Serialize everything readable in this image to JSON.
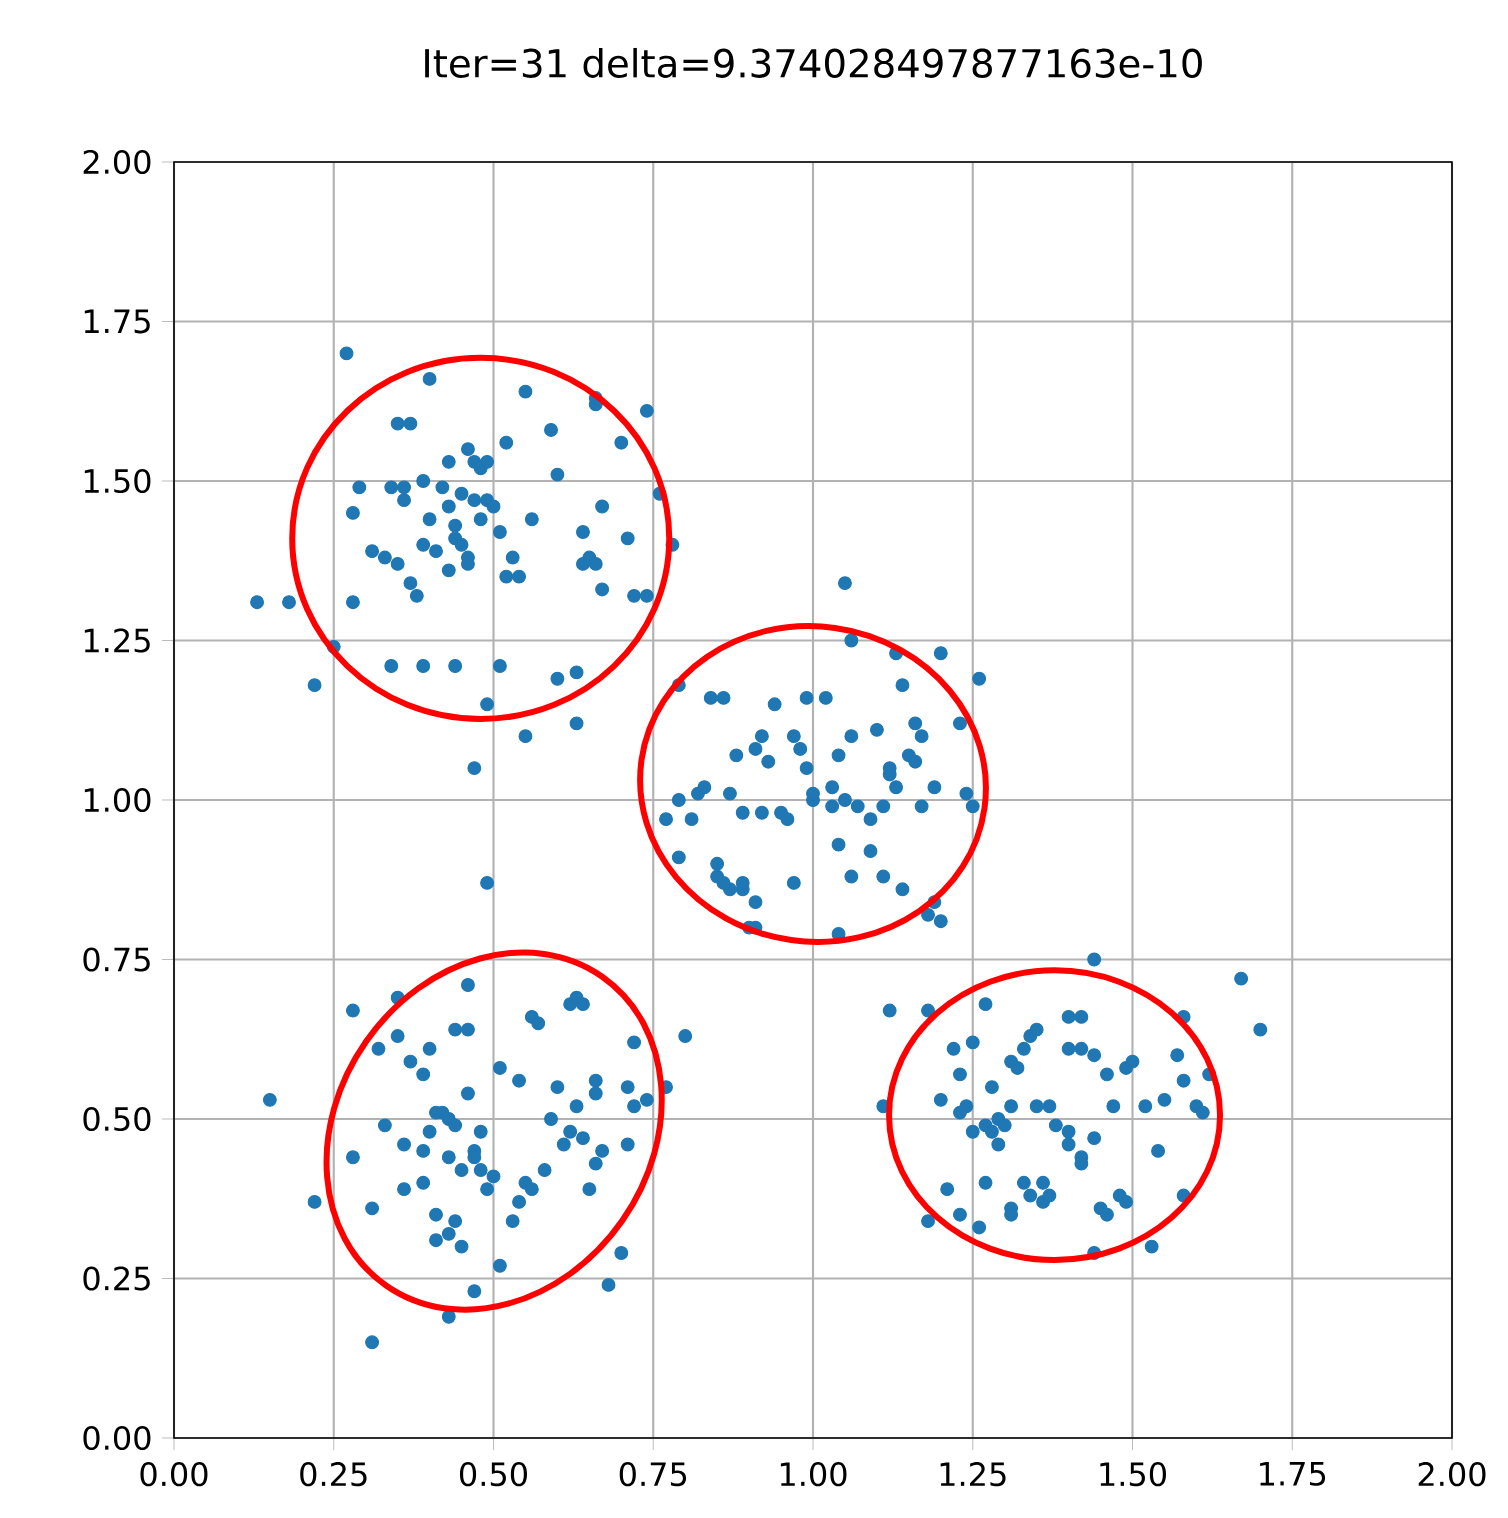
{
  "chart_data": {
    "type": "scatter",
    "title": "Iter=31  delta=9.374028497877163e-10",
    "xlim": [
      0,
      2
    ],
    "ylim": [
      0,
      2
    ],
    "xticks": [
      {
        "value": 0,
        "label": "0.00"
      },
      {
        "value": 0.25,
        "label": "0.25"
      },
      {
        "value": 0.5,
        "label": "0.50"
      },
      {
        "value": 0.75,
        "label": "0.75"
      },
      {
        "value": 1,
        "label": "1.00"
      },
      {
        "value": 1.25,
        "label": "1.25"
      },
      {
        "value": 1.5,
        "label": "1.50"
      },
      {
        "value": 1.75,
        "label": "1.75"
      },
      {
        "value": 2,
        "label": "2.00"
      }
    ],
    "yticks": [
      {
        "value": 0,
        "label": "0.00"
      },
      {
        "value": 0.25,
        "label": "0.25"
      },
      {
        "value": 0.5,
        "label": "0.50"
      },
      {
        "value": 0.75,
        "label": "0.75"
      },
      {
        "value": 1,
        "label": "1.00"
      },
      {
        "value": 1.25,
        "label": "1.25"
      },
      {
        "value": 1.5,
        "label": "1.50"
      },
      {
        "value": 1.75,
        "label": "1.75"
      },
      {
        "value": 2,
        "label": "2.00"
      }
    ],
    "grid": true,
    "marker": "circle",
    "series": [
      {
        "color": "#1f77b4",
        "x": [
          0.27,
          0.4,
          0.35,
          0.37,
          0.55,
          0.66,
          0.66,
          0.59,
          0.7,
          0.74,
          0.46,
          0.52,
          0.43,
          0.47,
          0.48,
          0.49,
          0.6,
          0.29,
          0.34,
          0.36,
          0.39,
          0.42,
          0.45,
          0.47,
          0.49,
          0.5,
          0.43,
          0.36,
          0.28,
          0.4,
          0.44,
          0.48,
          0.56,
          0.67,
          0.76,
          0.78,
          0.31,
          0.39,
          0.41,
          0.43,
          0.44,
          0.45,
          0.46,
          0.46,
          0.51,
          0.64,
          0.65,
          0.64,
          0.66,
          0.71,
          0.33,
          0.35,
          0.37,
          0.38,
          0.53,
          0.52,
          0.54,
          0.72,
          0.67,
          0.28,
          0.13,
          0.18,
          0.39,
          0.34,
          0.44,
          0.51,
          0.6,
          0.63,
          0.49,
          0.22,
          0.25,
          0.55,
          0.63,
          0.47,
          0.79,
          1.05,
          1.06,
          1.13,
          1.2,
          1.26,
          0.84,
          0.86,
          0.94,
          0.99,
          1.02,
          1.14,
          1.16,
          1.1,
          1.17,
          1.23,
          0.88,
          0.91,
          0.92,
          0.93,
          0.97,
          0.98,
          0.99,
          1.04,
          1.06,
          1.12,
          1.12,
          1.15,
          1.16,
          0.82,
          0.83,
          0.87,
          0.89,
          0.92,
          0.95,
          0.96,
          1.0,
          1.03,
          1.05,
          1.07,
          1.11,
          1.13,
          1.19,
          1.24,
          1.25,
          1.0,
          1.03,
          0.81,
          1.04,
          1.09,
          1.17,
          0.85,
          0.85,
          0.87,
          0.89,
          0.89,
          0.86,
          0.91,
          0.97,
          1.06,
          1.09,
          1.11,
          1.14,
          1.18,
          1.19,
          1.2,
          0.91,
          0.9,
          1.04,
          0.77,
          0.79,
          0.79,
          0.74,
          0.49,
          0.46,
          0.35,
          0.28,
          0.32,
          0.4,
          0.37,
          0.46,
          0.44,
          0.39,
          0.35,
          0.56,
          0.57,
          0.62,
          0.63,
          0.64,
          0.72,
          0.77,
          0.8,
          0.51,
          0.54,
          0.66,
          0.66,
          0.71,
          0.72,
          0.74,
          0.59,
          0.62,
          0.6,
          0.63,
          0.46,
          0.42,
          0.4,
          0.43,
          0.41,
          0.44,
          0.48,
          0.47,
          0.47,
          0.45,
          0.43,
          0.36,
          0.39,
          0.33,
          0.36,
          0.39,
          0.48,
          0.5,
          0.49,
          0.55,
          0.56,
          0.61,
          0.64,
          0.67,
          0.71,
          0.66,
          0.58,
          0.28,
          0.15,
          0.22,
          0.31,
          0.41,
          0.43,
          0.45,
          0.41,
          0.44,
          0.53,
          0.54,
          0.51,
          0.47,
          0.43,
          0.31,
          0.68,
          0.7,
          0.65,
          1.44,
          1.67,
          1.7,
          1.58,
          1.27,
          1.25,
          1.33,
          1.34,
          1.35,
          1.4,
          1.42,
          1.44,
          1.4,
          1.42,
          1.22,
          1.2,
          1.23,
          1.28,
          1.31,
          1.32,
          1.29,
          1.3,
          1.31,
          1.35,
          1.37,
          1.24,
          1.23,
          1.25,
          1.27,
          1.28,
          1.29,
          1.38,
          1.4,
          1.4,
          1.42,
          1.42,
          1.44,
          1.46,
          1.49,
          1.5,
          1.47,
          1.52,
          1.57,
          1.58,
          1.6,
          1.55,
          1.61,
          1.54,
          1.27,
          1.33,
          1.31,
          1.31,
          1.34,
          1.26,
          1.23,
          1.18,
          1.21,
          1.36,
          1.37,
          1.36,
          1.45,
          1.48,
          1.46,
          1.49,
          1.44,
          1.53,
          1.58,
          1.18,
          1.11,
          1.12,
          1.62
        ],
        "values": [
          1.7,
          1.66,
          1.59,
          1.59,
          1.64,
          1.62,
          1.63,
          1.58,
          1.56,
          1.61,
          1.55,
          1.56,
          1.53,
          1.53,
          1.52,
          1.53,
          1.51,
          1.49,
          1.49,
          1.47,
          1.5,
          1.49,
          1.48,
          1.47,
          1.47,
          1.46,
          1.46,
          1.49,
          1.45,
          1.44,
          1.43,
          1.44,
          1.44,
          1.46,
          1.48,
          1.4,
          1.39,
          1.4,
          1.39,
          1.36,
          1.41,
          1.4,
          1.38,
          1.37,
          1.42,
          1.42,
          1.38,
          1.37,
          1.37,
          1.41,
          1.38,
          1.37,
          1.34,
          1.32,
          1.38,
          1.35,
          1.35,
          1.32,
          1.33,
          1.31,
          1.31,
          1.31,
          1.21,
          1.21,
          1.21,
          1.21,
          1.19,
          1.2,
          1.15,
          1.18,
          1.24,
          1.1,
          1.12,
          1.05,
          1.18,
          1.34,
          1.25,
          1.23,
          1.23,
          1.19,
          1.16,
          1.16,
          1.15,
          1.16,
          1.16,
          1.18,
          1.12,
          1.11,
          1.1,
          1.12,
          1.07,
          1.08,
          1.1,
          1.06,
          1.1,
          1.08,
          1.05,
          1.07,
          1.1,
          1.04,
          1.05,
          1.07,
          1.06,
          1.01,
          1.02,
          1.01,
          0.98,
          0.98,
          0.98,
          0.97,
          1.0,
          0.99,
          1.0,
          0.99,
          0.99,
          1.02,
          1.02,
          1.01,
          0.99,
          1.01,
          1.02,
          0.97,
          0.93,
          0.97,
          0.99,
          0.9,
          0.88,
          0.86,
          0.86,
          0.87,
          0.87,
          0.84,
          0.87,
          0.88,
          0.92,
          0.88,
          0.86,
          0.82,
          0.84,
          0.81,
          0.8,
          0.8,
          0.79,
          0.97,
          0.91,
          1.0,
          1.32,
          0.87,
          0.71,
          0.69,
          0.67,
          0.61,
          0.61,
          0.59,
          0.64,
          0.64,
          0.57,
          0.63,
          0.66,
          0.65,
          0.68,
          0.69,
          0.68,
          0.62,
          0.55,
          0.63,
          0.58,
          0.56,
          0.54,
          0.56,
          0.55,
          0.52,
          0.53,
          0.5,
          0.48,
          0.55,
          0.52,
          0.54,
          0.51,
          0.48,
          0.5,
          0.51,
          0.49,
          0.48,
          0.45,
          0.44,
          0.42,
          0.44,
          0.46,
          0.45,
          0.49,
          0.39,
          0.4,
          0.42,
          0.41,
          0.39,
          0.4,
          0.39,
          0.46,
          0.47,
          0.45,
          0.46,
          0.43,
          0.42,
          0.44,
          0.53,
          0.37,
          0.36,
          0.35,
          0.32,
          0.3,
          0.31,
          0.34,
          0.34,
          0.37,
          0.27,
          0.23,
          0.19,
          0.15,
          0.24,
          0.29,
          0.39,
          0.75,
          0.72,
          0.64,
          0.66,
          0.68,
          0.62,
          0.61,
          0.63,
          0.64,
          0.66,
          0.66,
          0.6,
          0.61,
          0.61,
          0.61,
          0.53,
          0.57,
          0.55,
          0.59,
          0.58,
          0.5,
          0.49,
          0.52,
          0.52,
          0.52,
          0.52,
          0.51,
          0.48,
          0.49,
          0.48,
          0.46,
          0.49,
          0.48,
          0.46,
          0.44,
          0.43,
          0.47,
          0.57,
          0.58,
          0.59,
          0.52,
          0.52,
          0.6,
          0.56,
          0.52,
          0.53,
          0.51,
          0.45,
          0.4,
          0.4,
          0.36,
          0.35,
          0.38,
          0.33,
          0.35,
          0.34,
          0.39,
          0.37,
          0.38,
          0.4,
          0.36,
          0.38,
          0.35,
          0.37,
          0.29,
          0.3,
          0.38,
          0.67,
          0.52,
          0.67,
          0.57
        ]
      }
    ]
  }
}
